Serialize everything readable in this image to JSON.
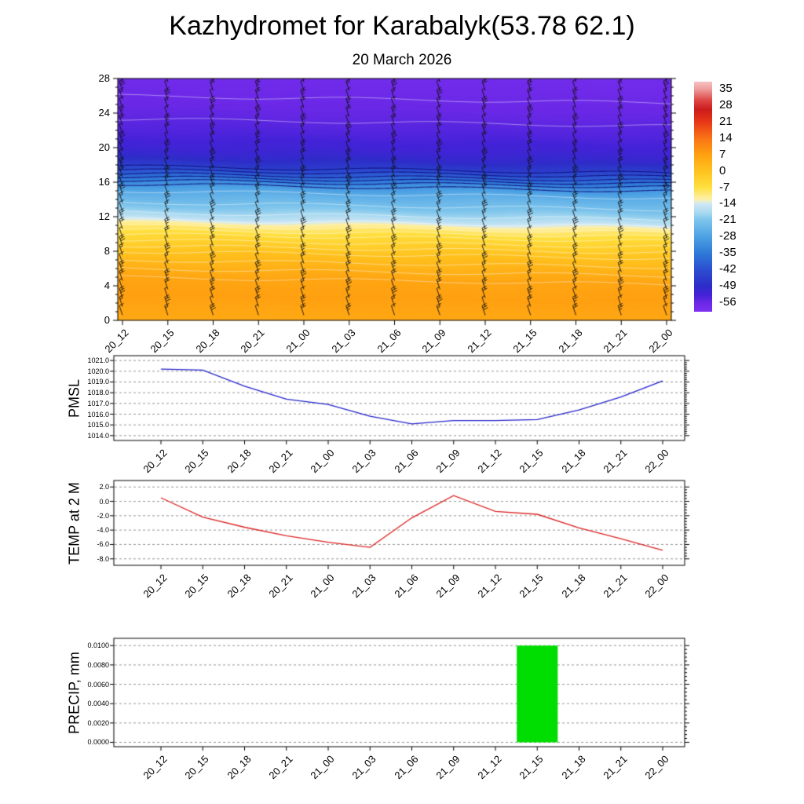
{
  "header": {
    "title": "Kazhydromet for Karabalyk(53.78 62.1)",
    "subtitle": "20 March 2026"
  },
  "time_labels": [
    "20_12",
    "20_15",
    "20_18",
    "20_21",
    "21_00",
    "21_03",
    "21_06",
    "21_09",
    "21_12",
    "21_15",
    "21_18",
    "21_21",
    "22_00"
  ],
  "chart_data": [
    {
      "id": "cross_section",
      "type": "heatmap",
      "description": "Time-height temperature cross-section with wind barbs",
      "x_categories": [
        "20_12",
        "20_15",
        "20_18",
        "20_21",
        "21_00",
        "21_03",
        "21_06",
        "21_09",
        "21_12",
        "21_15",
        "21_18",
        "21_21",
        "22_00"
      ],
      "ylim": [
        0,
        28
      ],
      "ytick_values": [
        0,
        4,
        8,
        12,
        16,
        20,
        24,
        28
      ],
      "ytick_labels": [
        "0",
        "4",
        "8",
        "12",
        "16",
        "20",
        "24",
        "28"
      ],
      "colorbar_tick_values": [
        35,
        28,
        21,
        14,
        7,
        0,
        -7,
        -14,
        -21,
        -28,
        -35,
        -42,
        -49,
        -56
      ],
      "colorbar_tick_labels": [
        "35",
        "28",
        "21",
        "14",
        "7",
        "0",
        "-7",
        "-14",
        "-21",
        "-28",
        "-35",
        "-42",
        "-49",
        "-56"
      ],
      "colorbar_range": [
        38,
        -60
      ],
      "color_stops": [
        {
          "v": 38,
          "c": "#f6c2c2"
        },
        {
          "v": 35,
          "c": "#ef9f9f"
        },
        {
          "v": 30,
          "c": "#dd4444"
        },
        {
          "v": 26,
          "c": "#cc1c1c"
        },
        {
          "v": 21,
          "c": "#e63517"
        },
        {
          "v": 14,
          "c": "#f97316"
        },
        {
          "v": 7,
          "c": "#ffa010"
        },
        {
          "v": 0,
          "c": "#ffc21e"
        },
        {
          "v": -7,
          "c": "#ffdf3e"
        },
        {
          "v": -12,
          "c": "#fff0a6"
        },
        {
          "v": -14,
          "c": "#cfe8f5"
        },
        {
          "v": -18,
          "c": "#a6d8f0"
        },
        {
          "v": -21,
          "c": "#7cc4ec"
        },
        {
          "v": -28,
          "c": "#4da2e4"
        },
        {
          "v": -35,
          "c": "#2f7ad8"
        },
        {
          "v": -42,
          "c": "#2b4fd0"
        },
        {
          "v": -49,
          "c": "#2d2dc8"
        },
        {
          "v": -53,
          "c": "#4422d8"
        },
        {
          "v": -56,
          "c": "#6a28e6"
        },
        {
          "v": -60,
          "c": "#7c2ff0"
        }
      ],
      "profile": [
        {
          "h": 0,
          "t": 5
        },
        {
          "h": 3,
          "t": 7
        },
        {
          "h": 5,
          "t": 6
        },
        {
          "h": 8,
          "t": 0
        },
        {
          "h": 10,
          "t": -6
        },
        {
          "h": 11,
          "t": -10
        },
        {
          "h": 12,
          "t": -16
        },
        {
          "h": 13,
          "t": -20
        },
        {
          "h": 14,
          "t": -23
        },
        {
          "h": 15,
          "t": -26
        },
        {
          "h": 16,
          "t": -31
        },
        {
          "h": 17,
          "t": -39
        },
        {
          "h": 18,
          "t": -46
        },
        {
          "h": 19,
          "t": -50
        },
        {
          "h": 20,
          "t": -52
        },
        {
          "h": 22,
          "t": -54
        },
        {
          "h": 24,
          "t": -55.5
        },
        {
          "h": 26,
          "t": -56.5
        },
        {
          "h": 28,
          "t": -57.5
        }
      ],
      "tilt": 0.85,
      "contour_levels_light": [
        6,
        4,
        2,
        0,
        -2,
        -4,
        -6,
        -8,
        -10,
        -14,
        -18,
        -22,
        -26,
        -55,
        -56.5
      ],
      "contour_levels_dark": [
        -30,
        -33,
        -36,
        -39,
        -42,
        -45
      ],
      "wind_barbs": {
        "columns": 13,
        "rows": 28
      }
    },
    {
      "id": "pmsl",
      "type": "line",
      "label": "PMSL",
      "color": "#2222cc",
      "ylim": [
        1013.55,
        1021.45
      ],
      "ytick_values": [
        1021,
        1020,
        1019,
        1018,
        1017,
        1016,
        1015,
        1014
      ],
      "ytick_labels": [
        "1021.0",
        "1020.0",
        "1019.0",
        "1018.0",
        "1017.0",
        "1016.0",
        "1015.0",
        "1014.0"
      ],
      "minor_step": 0.2,
      "values": [
        1020.2,
        1020.1,
        1018.6,
        1017.4,
        1016.9,
        1015.8,
        1015.1,
        1015.4,
        1015.4,
        1015.5,
        1016.4,
        1017.6,
        1019.1
      ]
    },
    {
      "id": "temp2m",
      "type": "line",
      "label": "TEMP at 2 M",
      "color": "#dd2222",
      "ylim": [
        -8.9,
        2.9
      ],
      "ytick_values": [
        2,
        0,
        -2,
        -4,
        -6,
        -8
      ],
      "ytick_labels": [
        "2.0",
        "0.0",
        "-2.0",
        "-4.0",
        "-6.0",
        "-8.0"
      ],
      "minor_step": 0.4,
      "values": [
        0.5,
        -2.2,
        -3.6,
        -4.8,
        -5.7,
        -6.4,
        -2.3,
        0.8,
        -1.4,
        -1.8,
        -3.7,
        -5.2,
        -6.8
      ]
    },
    {
      "id": "precip",
      "type": "bar",
      "label": "PRECIP, mm",
      "color": "#00dd00",
      "ylim": [
        -0.00045,
        0.01075
      ],
      "ytick_values": [
        0.01,
        0.008,
        0.006,
        0.004,
        0.002,
        0
      ],
      "ytick_labels": [
        "0.0100",
        "0.0080",
        "0.0060",
        "0.0040",
        "0.0020",
        "0.0000"
      ],
      "minor_step": 0.0004,
      "values": [
        0,
        0,
        0,
        0,
        0,
        0,
        0,
        0,
        0,
        0.01,
        0,
        0,
        0
      ]
    }
  ]
}
